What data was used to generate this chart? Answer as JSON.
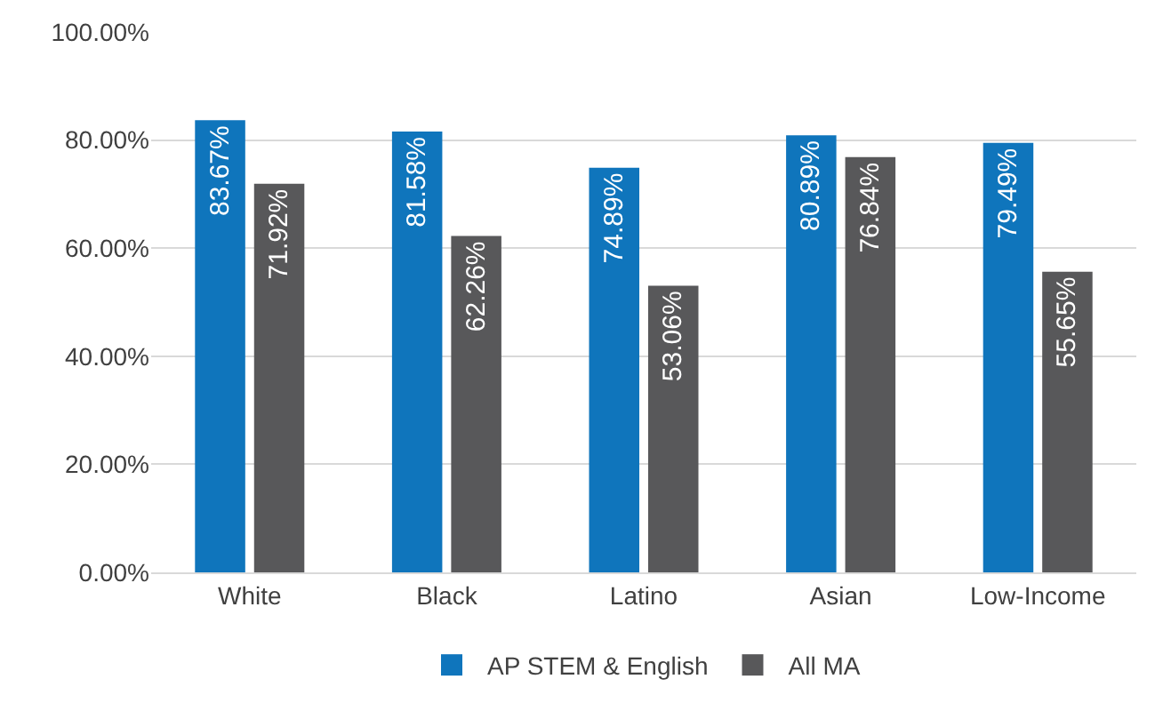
{
  "chart_data": {
    "type": "bar",
    "categories": [
      "White",
      "Black",
      "Latino",
      "Asian",
      "Low-Income"
    ],
    "series": [
      {
        "name": "AP STEM & English",
        "color": "#0f75bc",
        "values": [
          83.67,
          81.58,
          74.89,
          80.89,
          79.49
        ],
        "value_labels": [
          "83.67%",
          "81.58%",
          "74.89%",
          "80.89%",
          "79.49%"
        ]
      },
      {
        "name": "All MA",
        "color": "#58585a",
        "values": [
          71.92,
          62.26,
          53.06,
          76.84,
          55.65
        ],
        "value_labels": [
          "71.92%",
          "62.26%",
          "53.06%",
          "76.84%",
          "55.65%"
        ]
      }
    ],
    "ylim": [
      0,
      100
    ],
    "yticks": [
      {
        "value": 0,
        "label": "0.00%"
      },
      {
        "value": 20,
        "label": "20.00%"
      },
      {
        "value": 40,
        "label": "40.00%"
      },
      {
        "value": 60,
        "label": "60.00%"
      },
      {
        "value": 80,
        "label": "80.00%"
      },
      {
        "value": 100,
        "label": "100.00%"
      }
    ],
    "grid": "y",
    "legend": "bottom"
  }
}
